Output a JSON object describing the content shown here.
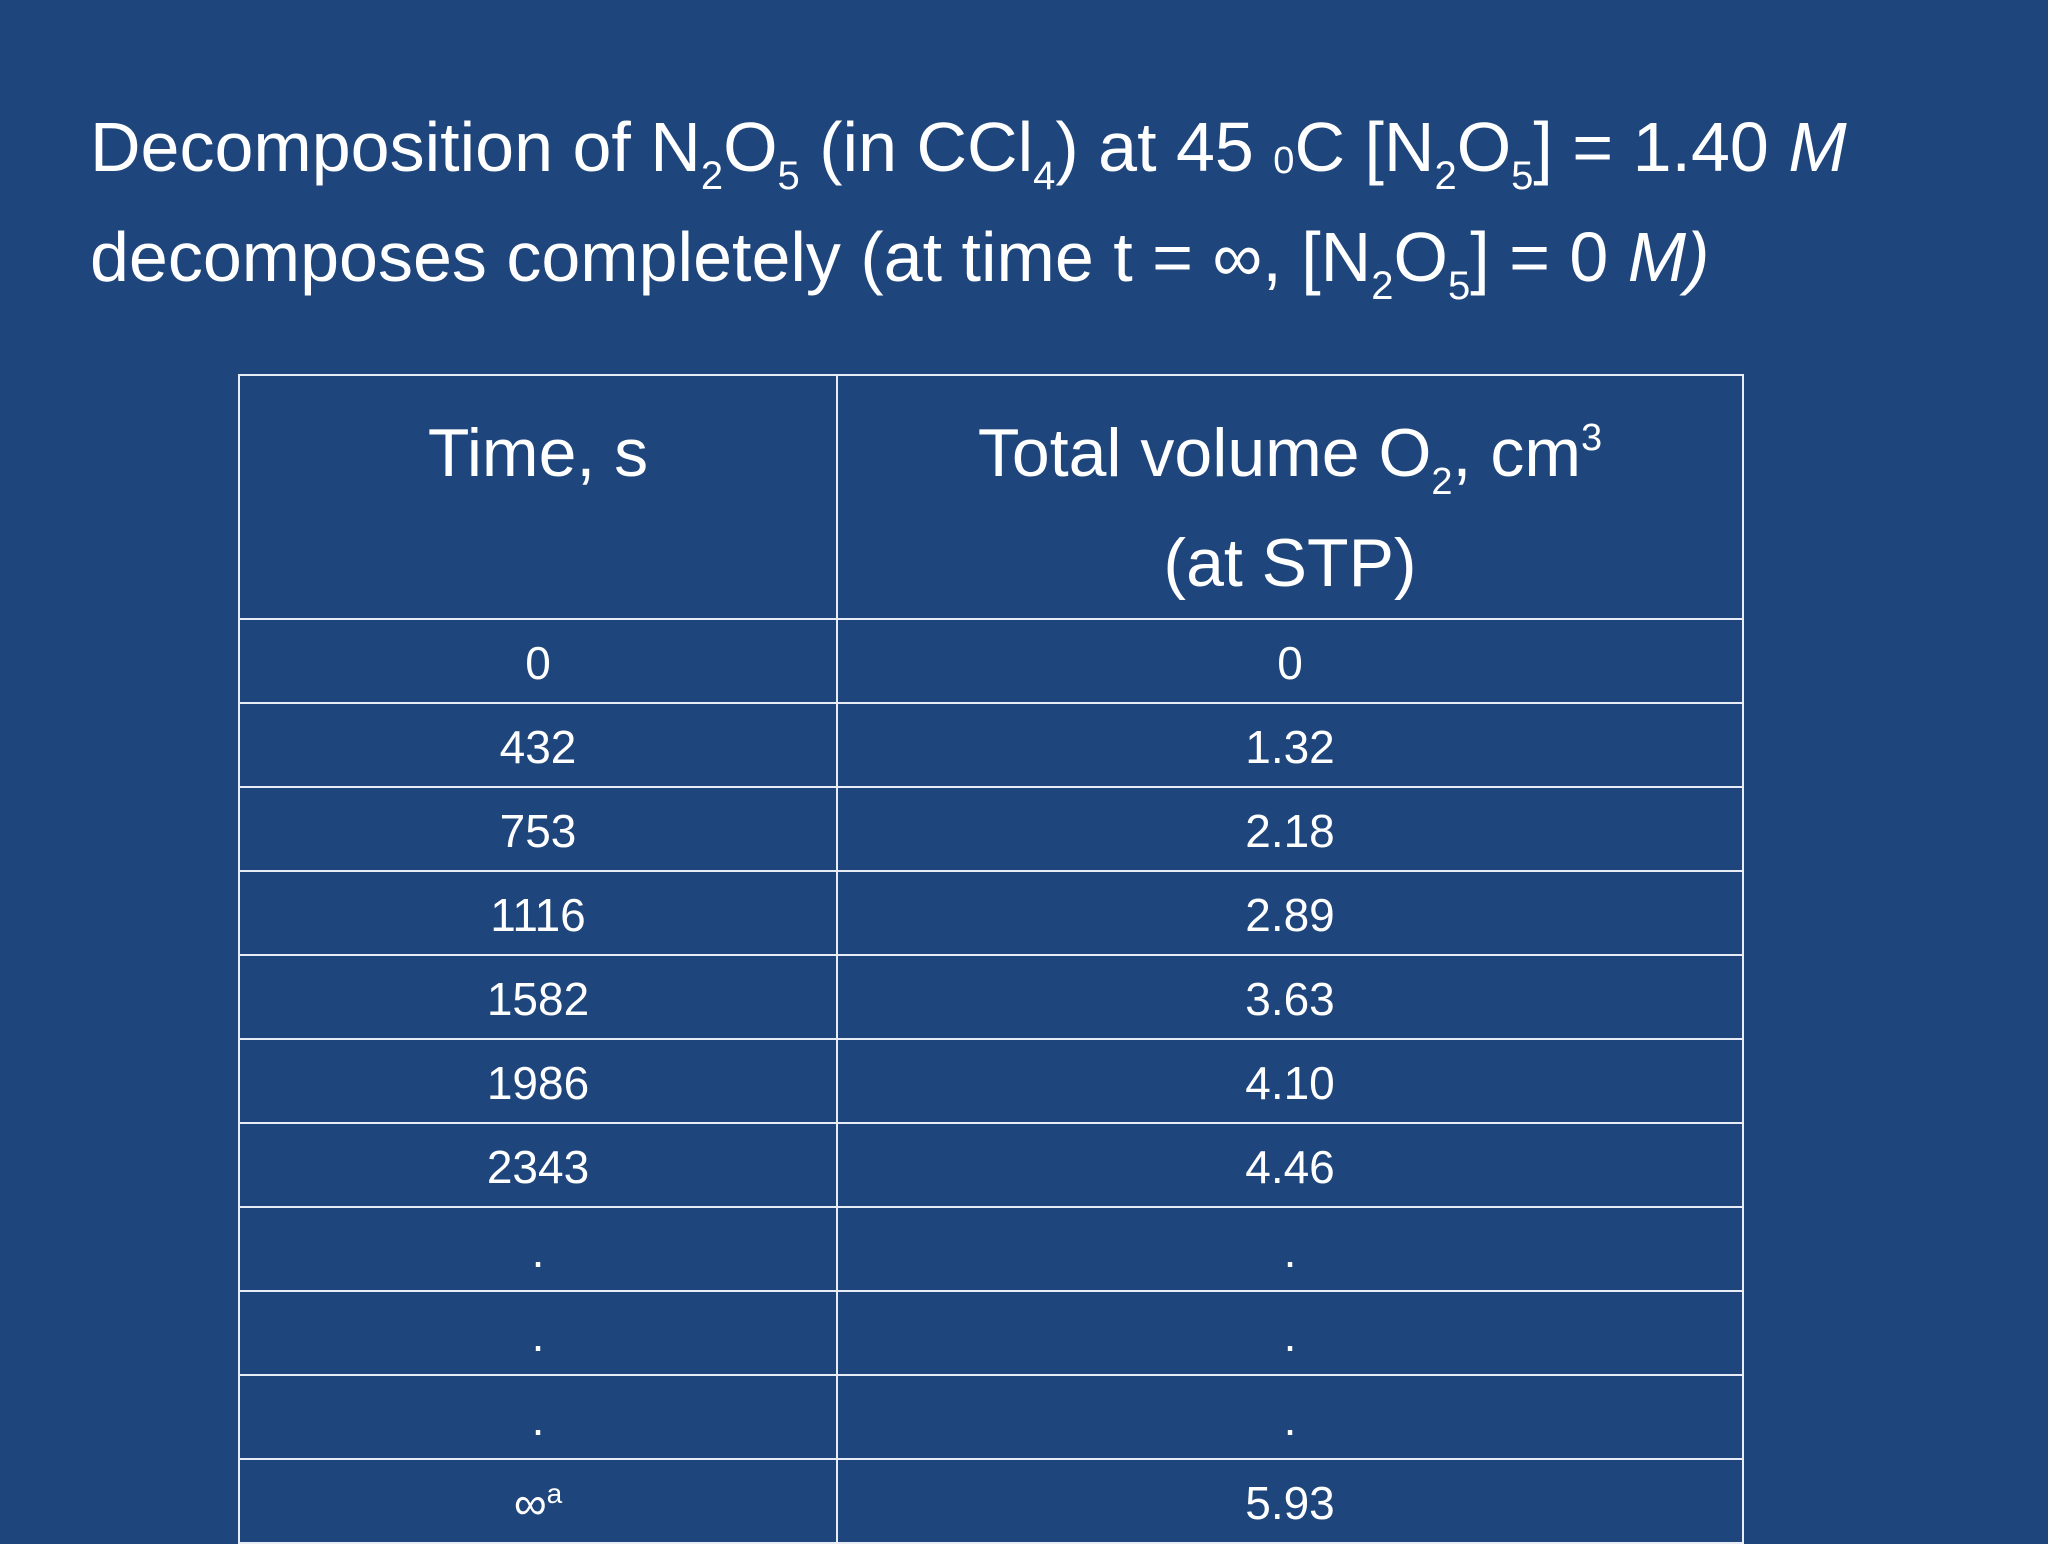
{
  "title": {
    "line1": {
      "p1": "Decomposition of N",
      "s1": "2",
      "p2": "O",
      "s2": "5",
      "p3": " (in CCl",
      "s3": "4",
      "p4": ") at 45 ",
      "deg": "0",
      "p5": "C [N",
      "s4": "2",
      "p6": "O",
      "s5": "5",
      "p7": "] = 1.40 ",
      "unit": "M"
    },
    "line2": {
      "p1": "decomposes completely (at time t = ∞, [N",
      "s1": "2",
      "p2": "O",
      "s2": "5",
      "p3": "] = 0 ",
      "unit": "M)"
    }
  },
  "table": {
    "header": {
      "col1": "Time, s",
      "col2": {
        "p1": "Total volume O",
        "sub": "2",
        "p2": ", cm",
        "sup": "3",
        "line2": "(at STP)"
      }
    },
    "rows": [
      {
        "time": "0",
        "volume": "0"
      },
      {
        "time": "432",
        "volume": "1.32"
      },
      {
        "time": "753",
        "volume": "2.18"
      },
      {
        "time": "1116",
        "volume": "2.89"
      },
      {
        "time": "1582",
        "volume": "3.63"
      },
      {
        "time": "1986",
        "volume": "4.10"
      },
      {
        "time": "2343",
        "volume": "4.46"
      },
      {
        "time": ".",
        "volume": "."
      },
      {
        "time": ".",
        "volume": "."
      },
      {
        "time": ".",
        "volume": "."
      },
      {
        "time": "∞",
        "time_sup": "a",
        "volume": "5.93"
      }
    ]
  }
}
